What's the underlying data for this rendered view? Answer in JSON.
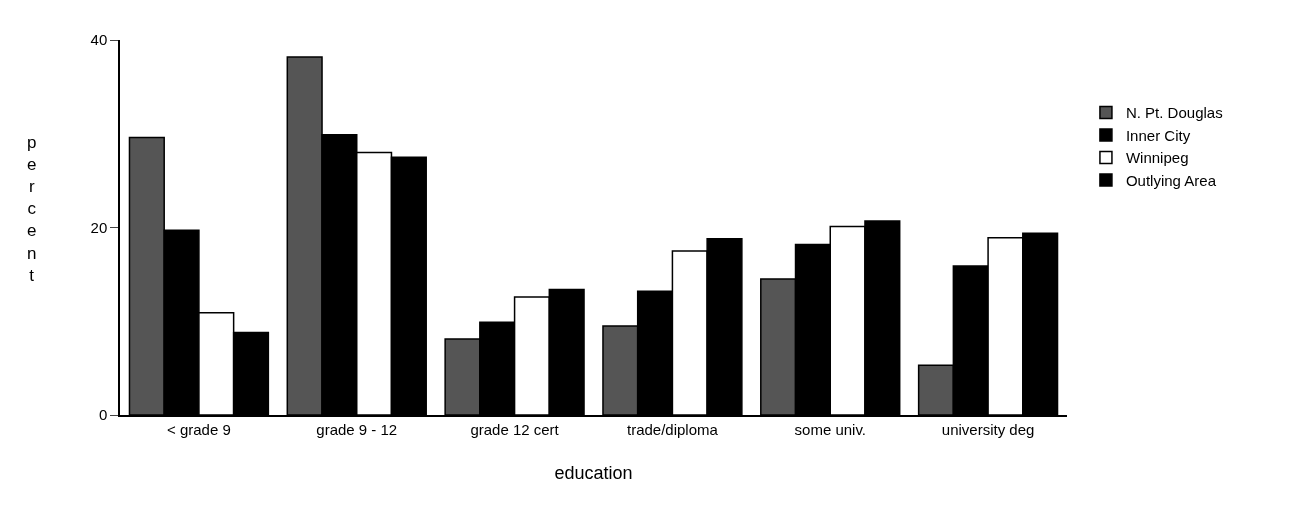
{
  "chart_data": {
    "type": "bar",
    "xlabel": "education",
    "ylabel": "percent",
    "categories": [
      "< grade 9",
      "grade 9 - 12",
      "grade 12 cert",
      "trade/diploma",
      "some univ.",
      "university deg"
    ],
    "series": [
      {
        "name": "N. Pt. Douglas",
        "color": "#555555",
        "values": [
          29.6,
          38.2,
          8.1,
          9.5,
          14.5,
          5.3
        ]
      },
      {
        "name": "Inner City",
        "color": "#000000",
        "values": [
          19.7,
          29.9,
          9.9,
          13.2,
          18.2,
          15.9
        ]
      },
      {
        "name": "Winnipeg",
        "color": "#ffffff",
        "values": [
          10.9,
          28.0,
          12.6,
          17.5,
          20.1,
          18.9
        ]
      },
      {
        "name": "Outlying Area",
        "color": "#000000",
        "values": [
          8.8,
          27.5,
          13.4,
          18.8,
          20.7,
          19.4
        ]
      }
    ],
    "ylim": [
      0,
      40
    ],
    "yticks": [
      0,
      20,
      40
    ],
    "legend": "right"
  }
}
